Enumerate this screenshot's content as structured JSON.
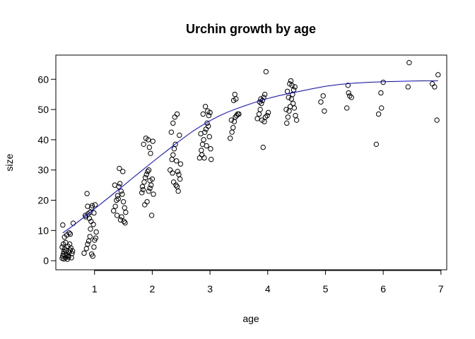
{
  "chart_data": {
    "type": "scatter",
    "title": "Urchin growth by age",
    "xlabel": "age",
    "ylabel": "size",
    "xlim": [
      0.33,
      7.1
    ],
    "ylim": [
      -3,
      68
    ],
    "xticks": [
      1,
      2,
      3,
      4,
      5,
      6,
      7
    ],
    "yticks": [
      0,
      10,
      20,
      30,
      40,
      50,
      60
    ],
    "grid": false,
    "colors": {
      "points": "#000000",
      "curve": "#0000ff"
    },
    "points": [
      [
        0.44,
        0.8
      ],
      [
        0.45,
        1.5
      ],
      [
        0.46,
        2.2
      ],
      [
        0.47,
        3.0
      ],
      [
        0.48,
        3.8
      ],
      [
        0.44,
        4.5
      ],
      [
        0.5,
        1.0
      ],
      [
        0.52,
        2.0
      ],
      [
        0.53,
        0.5
      ],
      [
        0.55,
        1.2
      ],
      [
        0.56,
        2.8
      ],
      [
        0.58,
        3.5
      ],
      [
        0.6,
        1.0
      ],
      [
        0.46,
        5.5
      ],
      [
        0.5,
        6.0
      ],
      [
        0.54,
        4.8
      ],
      [
        0.57,
        5.5
      ],
      [
        0.62,
        3.2
      ],
      [
        0.48,
        7.8
      ],
      [
        0.52,
        8.5
      ],
      [
        0.56,
        9.2
      ],
      [
        0.45,
        11.8
      ],
      [
        0.58,
        8.8
      ],
      [
        0.63,
        12.4
      ],
      [
        0.49,
        1.9
      ],
      [
        0.51,
        3.3
      ],
      [
        0.55,
        1.6
      ],
      [
        0.61,
        2.4
      ],
      [
        0.47,
        0.6
      ],
      [
        0.59,
        4.2
      ],
      [
        0.82,
        2.5
      ],
      [
        0.86,
        4.0
      ],
      [
        0.88,
        5.5
      ],
      [
        0.9,
        6.5
      ],
      [
        0.92,
        8.0
      ],
      [
        0.95,
        2.2
      ],
      [
        0.97,
        1.5
      ],
      [
        0.99,
        4.5
      ],
      [
        1.0,
        6.8
      ],
      [
        1.02,
        7.5
      ],
      [
        0.93,
        10.5
      ],
      [
        0.98,
        12.0
      ],
      [
        0.85,
        14.5
      ],
      [
        0.89,
        15.5
      ],
      [
        0.92,
        16.0
      ],
      [
        0.95,
        17.5
      ],
      [
        0.88,
        18.0
      ],
      [
        0.96,
        18.2
      ],
      [
        0.99,
        15.8
      ],
      [
        1.01,
        18.5
      ],
      [
        1.03,
        9.5
      ],
      [
        0.84,
        15.0
      ],
      [
        0.87,
        22.2
      ],
      [
        0.91,
        14.0
      ],
      [
        0.94,
        13.0
      ],
      [
        1.33,
        16.5
      ],
      [
        1.36,
        18.0
      ],
      [
        1.38,
        20.0
      ],
      [
        1.4,
        21.5
      ],
      [
        1.42,
        24.5
      ],
      [
        1.44,
        25.5
      ],
      [
        1.46,
        23.0
      ],
      [
        1.48,
        22.0
      ],
      [
        1.5,
        19.5
      ],
      [
        1.52,
        17.5
      ],
      [
        1.39,
        15.0
      ],
      [
        1.45,
        13.5
      ],
      [
        1.47,
        14.5
      ],
      [
        1.51,
        13.0
      ],
      [
        1.53,
        12.5
      ],
      [
        1.41,
        20.5
      ],
      [
        1.43,
        30.5
      ],
      [
        1.49,
        29.5
      ],
      [
        1.35,
        25.0
      ],
      [
        1.54,
        16.0
      ],
      [
        1.82,
        22.5
      ],
      [
        1.84,
        23.5
      ],
      [
        1.86,
        26.0
      ],
      [
        1.88,
        27.5
      ],
      [
        1.9,
        28.5
      ],
      [
        1.92,
        29.5
      ],
      [
        1.94,
        30.0
      ],
      [
        1.96,
        26.5
      ],
      [
        1.98,
        25.0
      ],
      [
        2.0,
        27.0
      ],
      [
        1.85,
        38.5
      ],
      [
        1.89,
        40.5
      ],
      [
        1.93,
        40.0
      ],
      [
        1.95,
        37.5
      ],
      [
        1.97,
        35.5
      ],
      [
        2.01,
        39.5
      ],
      [
        1.87,
        18.5
      ],
      [
        1.91,
        19.5
      ],
      [
        1.99,
        15.0
      ],
      [
        1.94,
        23.0
      ],
      [
        1.96,
        24.0
      ],
      [
        1.83,
        24.5
      ],
      [
        2.02,
        22.0
      ],
      [
        2.31,
        30.0
      ],
      [
        2.34,
        33.5
      ],
      [
        2.36,
        35.0
      ],
      [
        2.38,
        37.0
      ],
      [
        2.4,
        38.5
      ],
      [
        2.42,
        33.0
      ],
      [
        2.44,
        29.5
      ],
      [
        2.46,
        28.5
      ],
      [
        2.48,
        27.0
      ],
      [
        2.37,
        26.0
      ],
      [
        2.41,
        25.0
      ],
      [
        2.43,
        24.5
      ],
      [
        2.45,
        23.0
      ],
      [
        2.33,
        42.5
      ],
      [
        2.36,
        45.5
      ],
      [
        2.39,
        47.5
      ],
      [
        2.43,
        48.5
      ],
      [
        2.47,
        41.5
      ],
      [
        2.35,
        29.0
      ],
      [
        2.49,
        32.0
      ],
      [
        2.82,
        34.0
      ],
      [
        2.85,
        36.5
      ],
      [
        2.87,
        38.5
      ],
      [
        2.89,
        40.0
      ],
      [
        2.91,
        42.5
      ],
      [
        2.93,
        43.5
      ],
      [
        2.95,
        45.5
      ],
      [
        2.97,
        44.5
      ],
      [
        2.99,
        41.0
      ],
      [
        3.01,
        37.0
      ],
      [
        2.84,
        42.0
      ],
      [
        2.88,
        48.5
      ],
      [
        2.92,
        51.0
      ],
      [
        2.96,
        49.5
      ],
      [
        2.98,
        48.0
      ],
      [
        3.0,
        49.0
      ],
      [
        2.86,
        35.0
      ],
      [
        2.94,
        38.0
      ],
      [
        3.02,
        33.5
      ],
      [
        2.9,
        34.0
      ],
      [
        3.35,
        40.5
      ],
      [
        3.38,
        42.5
      ],
      [
        3.4,
        44.0
      ],
      [
        3.42,
        46.0
      ],
      [
        3.44,
        47.5
      ],
      [
        3.46,
        48.0
      ],
      [
        3.48,
        48.5
      ],
      [
        3.5,
        48.5
      ],
      [
        3.41,
        53.0
      ],
      [
        3.45,
        53.5
      ],
      [
        3.43,
        55.0
      ],
      [
        3.37,
        46.5
      ],
      [
        3.82,
        47.0
      ],
      [
        3.85,
        48.5
      ],
      [
        3.87,
        50.0
      ],
      [
        3.89,
        52.0
      ],
      [
        3.91,
        53.0
      ],
      [
        3.93,
        54.0
      ],
      [
        3.95,
        55.0
      ],
      [
        3.97,
        62.5
      ],
      [
        3.99,
        48.0
      ],
      [
        3.92,
        37.5
      ],
      [
        3.9,
        46.5
      ],
      [
        3.94,
        46.0
      ],
      [
        3.96,
        47.5
      ],
      [
        3.86,
        52.5
      ],
      [
        3.88,
        53.5
      ],
      [
        4.01,
        49.0
      ],
      [
        4.33,
        45.5
      ],
      [
        4.35,
        47.5
      ],
      [
        4.37,
        49.5
      ],
      [
        4.39,
        51.0
      ],
      [
        4.41,
        53.5
      ],
      [
        4.43,
        55.0
      ],
      [
        4.45,
        56.5
      ],
      [
        4.47,
        57.5
      ],
      [
        4.38,
        58.5
      ],
      [
        4.4,
        59.5
      ],
      [
        4.42,
        58.0
      ],
      [
        4.36,
        54.0
      ],
      [
        4.44,
        52.0
      ],
      [
        4.46,
        50.5
      ],
      [
        4.34,
        56.0
      ],
      [
        4.48,
        48.0
      ],
      [
        4.32,
        50.0
      ],
      [
        4.5,
        46.5
      ],
      [
        4.92,
        52.5
      ],
      [
        4.96,
        54.5
      ],
      [
        4.98,
        49.5
      ],
      [
        5.37,
        50.5
      ],
      [
        5.4,
        55.5
      ],
      [
        5.42,
        54.5
      ],
      [
        5.45,
        54.0
      ],
      [
        5.39,
        58.0
      ],
      [
        5.88,
        38.5
      ],
      [
        5.92,
        48.5
      ],
      [
        5.96,
        55.5
      ],
      [
        5.97,
        50.5
      ],
      [
        6.0,
        59.0
      ],
      [
        6.43,
        57.5
      ],
      [
        6.45,
        65.5
      ],
      [
        6.85,
        58.5
      ],
      [
        6.89,
        57.5
      ],
      [
        6.93,
        46.5
      ],
      [
        6.95,
        61.5
      ]
    ],
    "curve_x": [
      0.45,
      0.6,
      0.75,
      0.9,
      1.05,
      1.2,
      1.35,
      1.5,
      1.65,
      1.8,
      1.95,
      2.1,
      2.25,
      2.4,
      2.55,
      2.7,
      2.85,
      3.0,
      3.15,
      3.3,
      3.45,
      3.6,
      3.75,
      3.9,
      4.05,
      4.2,
      4.35,
      4.5,
      4.75,
      5.0,
      5.25,
      5.5,
      5.75,
      6.0,
      6.25,
      6.5,
      6.75,
      6.95
    ],
    "curve_y": [
      9.2,
      11.2,
      13.4,
      15.6,
      17.9,
      20.2,
      22.5,
      24.8,
      27.2,
      29.5,
      31.8,
      34.1,
      36.3,
      38.6,
      40.7,
      42.8,
      44.6,
      46.3,
      47.8,
      49.1,
      50.2,
      51.2,
      52.2,
      53.1,
      53.9,
      54.6,
      55.2,
      55.8,
      56.8,
      57.7,
      58.3,
      58.7,
      59.0,
      59.2,
      59.3,
      59.4,
      59.5,
      59.5
    ]
  }
}
